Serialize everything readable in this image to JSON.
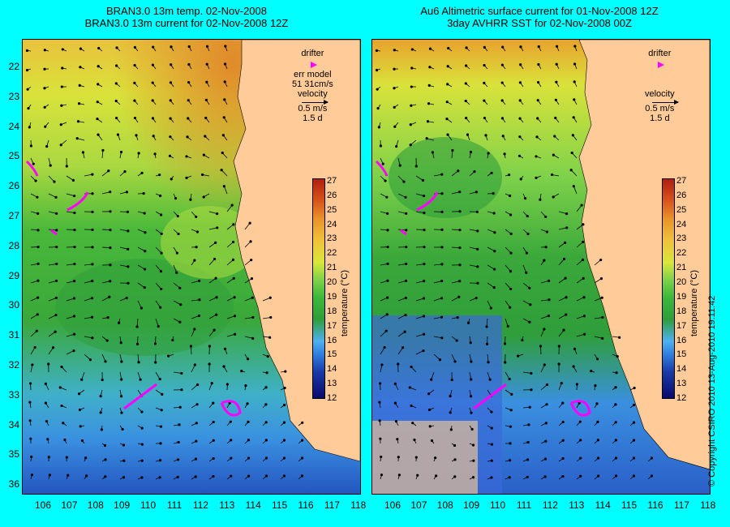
{
  "panels": [
    {
      "title_line1": "BRAN3.0 13m temp. 02-Nov-2008",
      "title_line2": "BRAN3.0 13m current for 02-Nov-2008 12Z",
      "legend": {
        "drifter": "drifter",
        "model_label": "err model",
        "model_value": "51 31cm/s",
        "velocity": "velocity",
        "speed": "0.5 m/s",
        "duration": "1.5 d"
      }
    },
    {
      "title_line1": "Au6 Altimetric surface current for 01-Nov-2008 12Z",
      "title_line2": "3day AVHRR SST for 02-Nov-2008 00Z",
      "legend": {
        "drifter": "drifter",
        "velocity": "velocity",
        "speed": "0.5 m/s",
        "duration": "1.5 d"
      }
    }
  ],
  "latitudes": [
    "22",
    "23",
    "24",
    "25",
    "26",
    "27",
    "28",
    "29",
    "30",
    "31",
    "32",
    "33",
    "34",
    "35",
    "36"
  ],
  "longitudes": [
    "106",
    "107",
    "108",
    "109",
    "110",
    "111",
    "112",
    "113",
    "114",
    "115",
    "116",
    "117",
    "118"
  ],
  "colorbar": {
    "title": "temperature (°C)",
    "ticks": [
      "27",
      "26",
      "25",
      "24",
      "23",
      "22",
      "21",
      "20",
      "19",
      "18",
      "17",
      "16",
      "15",
      "14",
      "13",
      "12"
    ]
  },
  "copyright": "© Copyright CSIRO 2010    13-Aug-2010 19:11:42",
  "colors": {
    "background": "#00ffff",
    "land": "#ffcc99",
    "drifter": "#ff00ff",
    "contour": "#40e0d0"
  }
}
